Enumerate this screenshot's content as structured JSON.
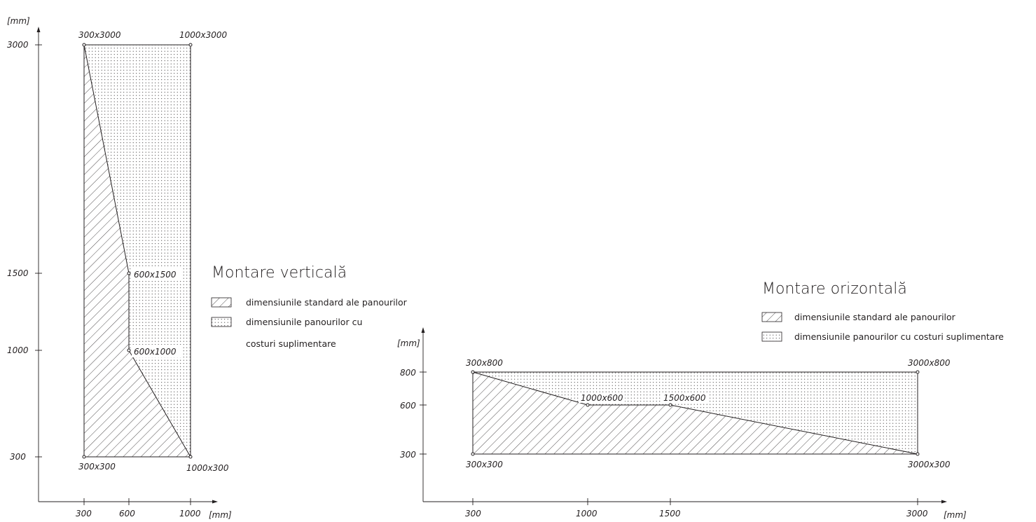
{
  "unit_label": "[mm]",
  "colors": {
    "ink": "#231f20",
    "background": "#ffffff"
  },
  "vertical": {
    "title": "Montare verticală",
    "legend": {
      "standard": "dimensiunile standard ale panourilor",
      "extra_line1": "dimensiunile panourilor cu",
      "extra_line2": "costuri suplimentare"
    },
    "x_ticks": [
      "300",
      "600",
      "1000"
    ],
    "y_ticks": [
      "3000",
      "1500",
      "1000",
      "300"
    ],
    "points": [
      "300x3000",
      "1000x3000",
      "600x1500",
      "600x1000",
      "300x300",
      "1000x300"
    ]
  },
  "horizontal": {
    "title": "Montare orizontală",
    "legend": {
      "standard": "dimensiunile standard ale panourilor",
      "extra": "dimensiunile panourilor cu costuri suplimentare"
    },
    "x_ticks": [
      "300",
      "1000",
      "1500",
      "3000"
    ],
    "y_ticks": [
      "800",
      "600",
      "300"
    ],
    "points": [
      "300x800",
      "3000x800",
      "1000x600",
      "1500x600",
      "300x300",
      "3000x300"
    ]
  }
}
